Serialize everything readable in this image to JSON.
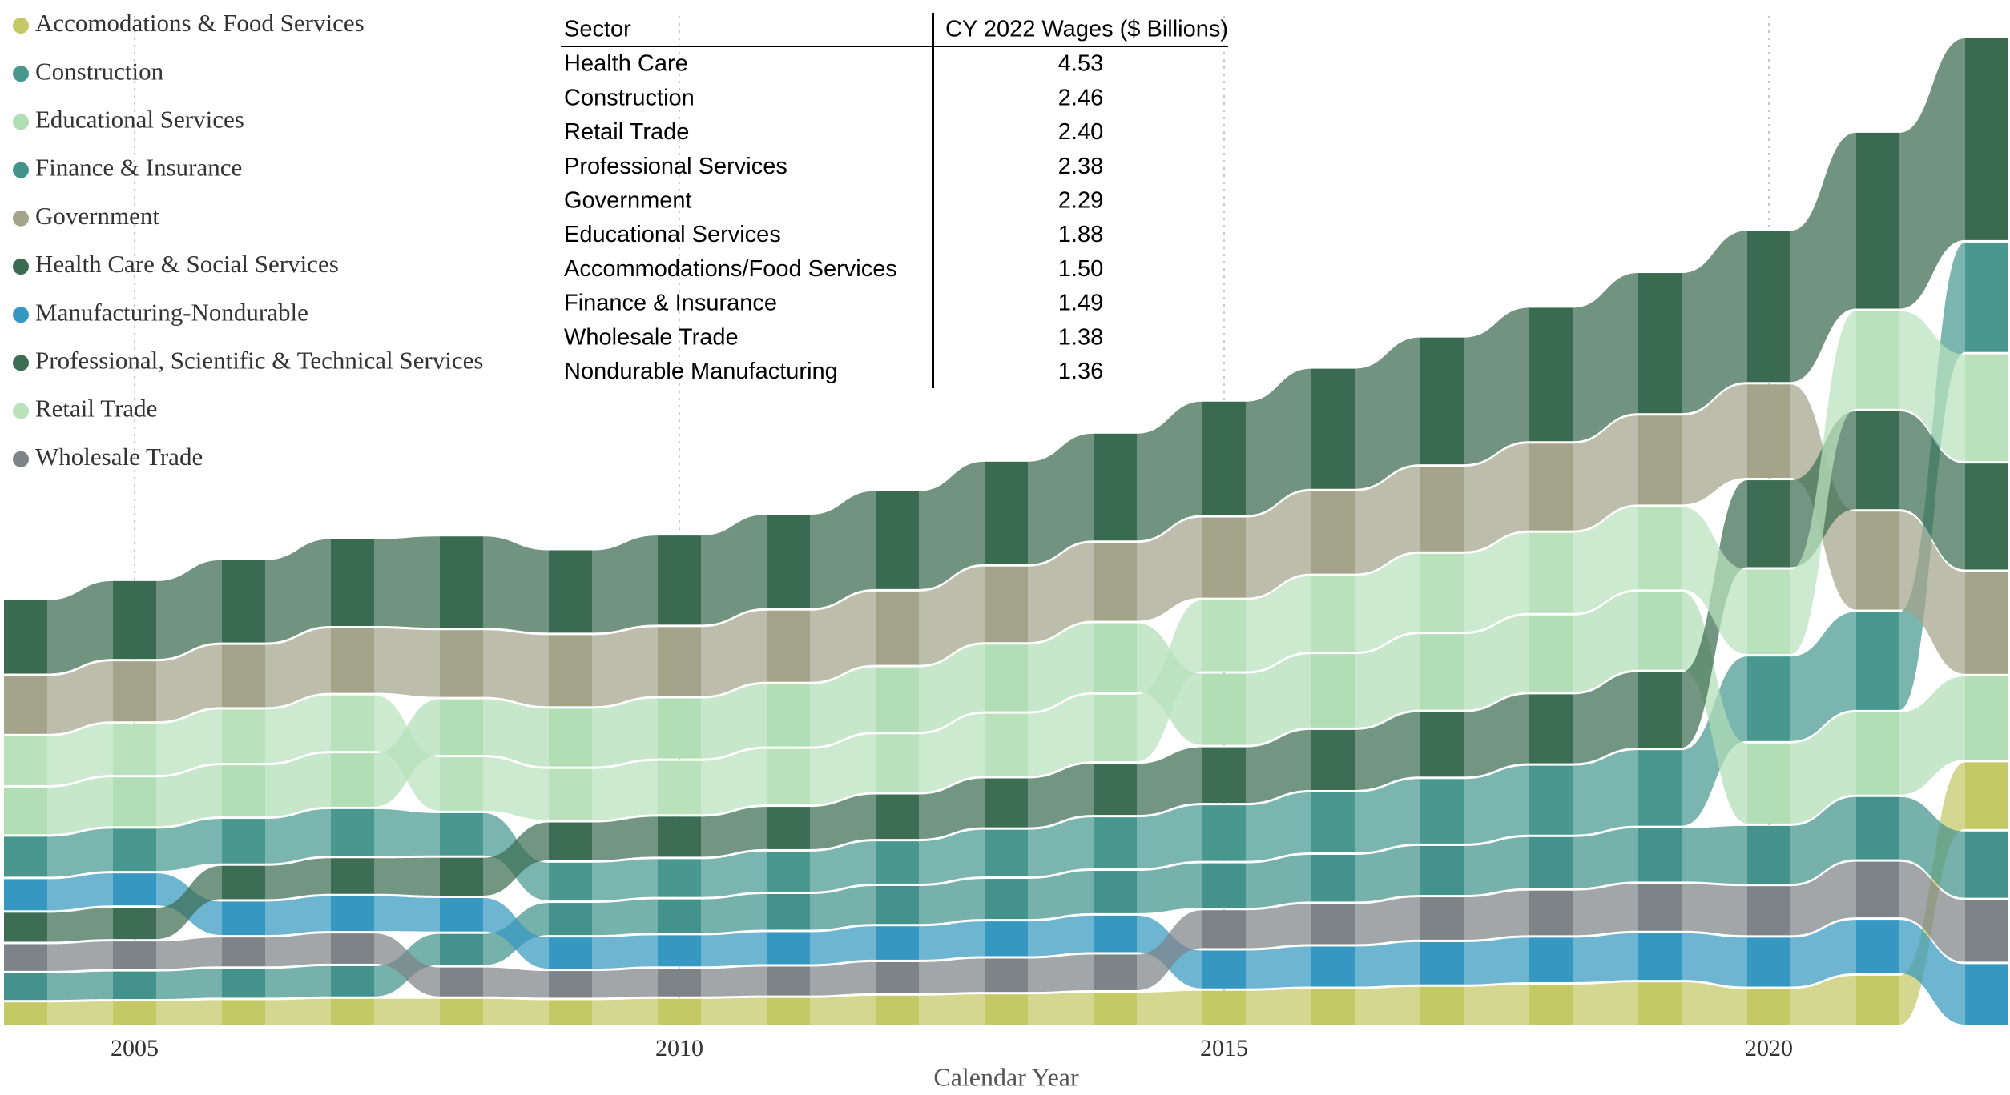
{
  "chart_data": {
    "type": "ribbon",
    "x": [
      2004,
      2005,
      2006,
      2007,
      2008,
      2009,
      2010,
      2011,
      2012,
      2013,
      2014,
      2015,
      2016,
      2017,
      2018,
      2019,
      2020,
      2021,
      2022
    ],
    "xlim": [
      2004,
      2022
    ],
    "xticks": [
      2005,
      2010,
      2015,
      2020
    ],
    "xlabel": "Calendar Year",
    "grid": true,
    "legend": "top-left",
    "series": [
      {
        "name": "Accomodations & Food Services",
        "color": "#c4c865",
        "values": [
          0.5,
          0.52,
          0.55,
          0.58,
          0.58,
          0.55,
          0.58,
          0.6,
          0.65,
          0.68,
          0.72,
          0.76,
          0.8,
          0.85,
          0.9,
          0.95,
          0.8,
          1.1,
          1.5
        ]
      },
      {
        "name": "Construction",
        "color": "#489890",
        "values": [
          0.9,
          0.95,
          1.0,
          1.05,
          0.95,
          0.85,
          0.85,
          0.9,
          0.95,
          1.05,
          1.15,
          1.25,
          1.35,
          1.45,
          1.55,
          1.7,
          1.9,
          2.2,
          2.46
        ]
      },
      {
        "name": "Educational Services",
        "color": "#b2deb5",
        "values": [
          1.05,
          1.1,
          1.15,
          1.2,
          1.25,
          1.3,
          1.35,
          1.4,
          1.45,
          1.5,
          1.55,
          1.6,
          1.65,
          1.7,
          1.72,
          1.75,
          1.8,
          1.85,
          1.88
        ]
      },
      {
        "name": "Finance & Insurance",
        "color": "#43938c",
        "values": [
          0.6,
          0.62,
          0.65,
          0.68,
          0.7,
          0.72,
          0.75,
          0.8,
          0.85,
          0.9,
          0.95,
          1.0,
          1.05,
          1.1,
          1.15,
          1.2,
          1.3,
          1.4,
          1.49
        ]
      },
      {
        "name": "Government",
        "color": "#a3a48a",
        "values": [
          1.3,
          1.35,
          1.4,
          1.45,
          1.5,
          1.6,
          1.55,
          1.6,
          1.65,
          1.7,
          1.75,
          1.8,
          1.85,
          1.9,
          1.95,
          2.0,
          2.1,
          2.2,
          2.29
        ]
      },
      {
        "name": "Health Care & Social Services",
        "color": "#3a6a4f",
        "values": [
          1.65,
          1.75,
          1.85,
          1.95,
          2.05,
          1.85,
          2.0,
          2.1,
          2.2,
          2.3,
          2.4,
          2.55,
          2.7,
          2.85,
          3.0,
          3.15,
          3.4,
          3.95,
          4.53
        ]
      },
      {
        "name": "Manufacturing-Nondurable",
        "color": "#3698c0",
        "values": [
          0.7,
          0.72,
          0.75,
          0.78,
          0.75,
          0.7,
          0.7,
          0.72,
          0.75,
          0.78,
          0.82,
          0.85,
          0.9,
          0.95,
          1.0,
          1.05,
          1.1,
          1.2,
          1.36
        ]
      },
      {
        "name": "Professional, Scientific & Technical Services",
        "color": "#3d6d52",
        "values": [
          0.65,
          0.7,
          0.75,
          0.8,
          0.85,
          0.85,
          0.9,
          0.95,
          1.0,
          1.1,
          1.15,
          1.25,
          1.35,
          1.45,
          1.55,
          1.7,
          1.95,
          2.2,
          2.38
        ]
      },
      {
        "name": "Retail Trade",
        "color": "#b9e2bc",
        "values": [
          1.1,
          1.15,
          1.2,
          1.25,
          1.2,
          1.15,
          1.2,
          1.25,
          1.3,
          1.4,
          1.5,
          1.6,
          1.7,
          1.75,
          1.8,
          1.85,
          1.9,
          2.2,
          2.4
        ]
      },
      {
        "name": "Wholesale Trade",
        "color": "#7e8387",
        "values": [
          0.6,
          0.62,
          0.65,
          0.68,
          0.65,
          0.6,
          0.62,
          0.65,
          0.7,
          0.75,
          0.8,
          0.85,
          0.9,
          0.95,
          1.0,
          1.05,
          1.1,
          1.25,
          1.38
        ]
      }
    ]
  },
  "table": {
    "columns": [
      "Sector",
      "CY 2022 Wages ($ Billions)"
    ],
    "rows": [
      [
        "Health Care",
        "4.53"
      ],
      [
        "Construction",
        "2.46"
      ],
      [
        "Retail Trade",
        "2.40"
      ],
      [
        "Professional Services",
        "2.38"
      ],
      [
        "Government",
        "2.29"
      ],
      [
        "Educational Services",
        "1.88"
      ],
      [
        "Accommodations/Food Services",
        "1.50"
      ],
      [
        "Finance & Insurance",
        "1.49"
      ],
      [
        "Wholesale Trade",
        "1.38"
      ],
      [
        "Nondurable Manufacturing",
        "1.36"
      ]
    ]
  }
}
